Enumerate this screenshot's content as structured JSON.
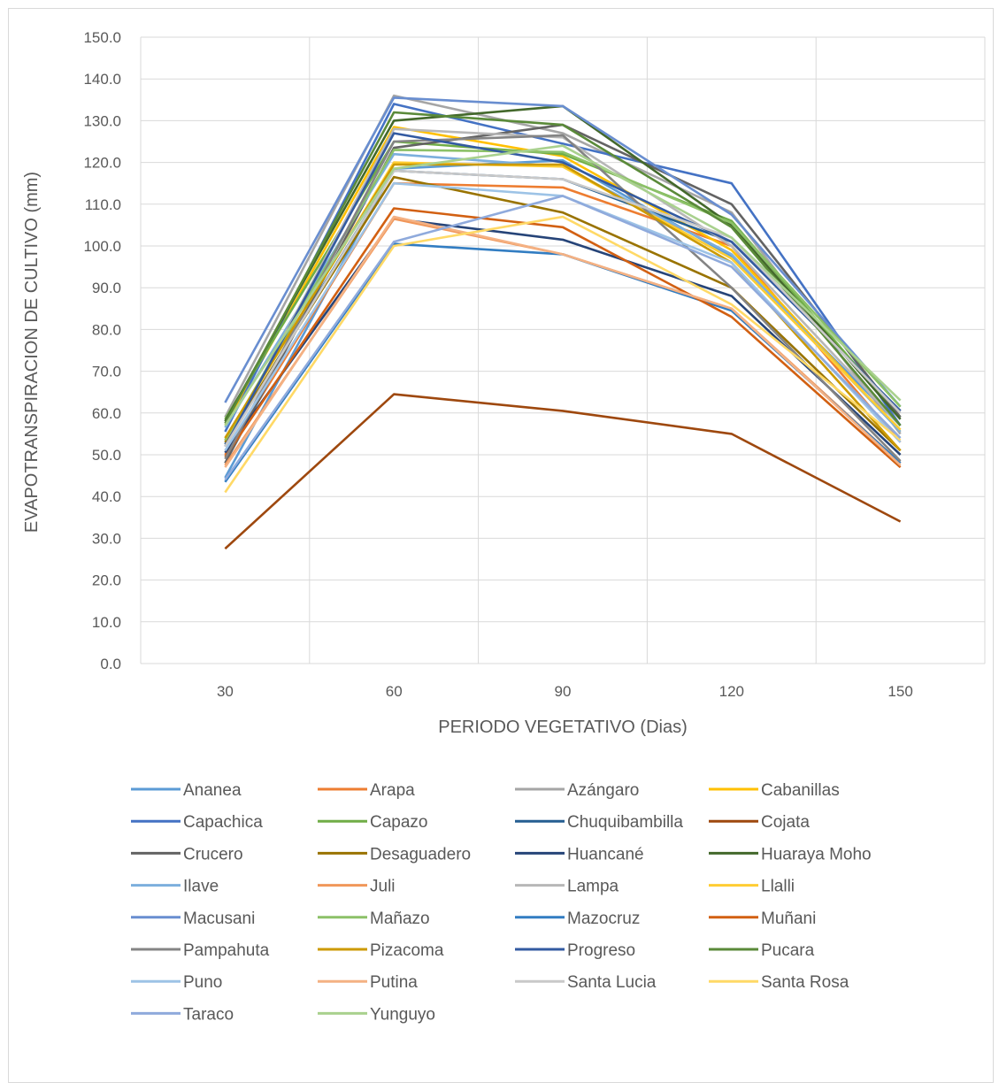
{
  "chart_data": {
    "type": "line",
    "title": "",
    "xlabel": "PERIODO VEGETATIVO (Dias)",
    "ylabel": "EVAPOTRANSPIRACION DE CULTIVO (mm)",
    "x": [
      30,
      60,
      90,
      120,
      150
    ],
    "ylim": [
      0,
      150
    ],
    "yticks": [
      "0.0",
      "10.0",
      "20.0",
      "30.0",
      "40.0",
      "50.0",
      "60.0",
      "70.0",
      "80.0",
      "90.0",
      "100.0",
      "110.0",
      "120.0",
      "130.0",
      "140.0",
      "150.0"
    ],
    "xticks": [
      "30",
      "60",
      "90",
      "120",
      "150"
    ],
    "grid": true,
    "legend_position": "bottom",
    "series": [
      {
        "name": "Ananea",
        "color": "#5B9BD5",
        "values": [
          44.5,
          118.5,
          120.5,
          97.5,
          57.0
        ]
      },
      {
        "name": "Arapa",
        "color": "#ED7D31",
        "values": [
          50.0,
          115.0,
          114.0,
          100.0,
          53.0
        ]
      },
      {
        "name": "Azángaro",
        "color": "#A5A5A5",
        "values": [
          59.0,
          136.0,
          127.0,
          108.0,
          55.0
        ]
      },
      {
        "name": "Cabanillas",
        "color": "#FFC000",
        "values": [
          57.0,
          128.5,
          121.5,
          99.0,
          55.5
        ]
      },
      {
        "name": "Capachica",
        "color": "#4472C4",
        "values": [
          55.5,
          134.0,
          124.5,
          115.0,
          57.0
        ]
      },
      {
        "name": "Capazo",
        "color": "#70AD47",
        "values": [
          58.5,
          125.0,
          122.0,
          106.0,
          59.0
        ]
      },
      {
        "name": "Chuquibambilla",
        "color": "#255E91",
        "values": [
          52.5,
          118.0,
          116.0,
          101.0,
          60.5
        ]
      },
      {
        "name": "Cojata",
        "color": "#9E480E",
        "values": [
          27.5,
          64.5,
          60.5,
          55.0,
          34.0
        ]
      },
      {
        "name": "Crucero",
        "color": "#636363",
        "values": [
          48.0,
          123.5,
          129.0,
          110.0,
          59.0
        ]
      },
      {
        "name": "Desaguadero",
        "color": "#997300",
        "values": [
          53.0,
          116.5,
          108.0,
          90.0,
          51.0
        ]
      },
      {
        "name": "Huancané",
        "color": "#264478",
        "values": [
          50.5,
          106.5,
          101.5,
          88.0,
          50.0
        ]
      },
      {
        "name": "Huaraya Moho",
        "color": "#43682B",
        "values": [
          58.0,
          130.0,
          133.5,
          105.0,
          58.5
        ]
      },
      {
        "name": "Ilave",
        "color": "#7CAFDD",
        "values": [
          56.5,
          122.0,
          119.0,
          98.0,
          55.5
        ]
      },
      {
        "name": "Juli",
        "color": "#F1975A",
        "values": [
          47.5,
          106.5,
          98.0,
          85.0,
          48.0
        ]
      },
      {
        "name": "Lampa",
        "color": "#B7B7B7",
        "values": [
          52.0,
          128.0,
          126.0,
          100.0,
          57.0
        ]
      },
      {
        "name": "Llalli",
        "color": "#FFCD33",
        "values": [
          53.5,
          120.0,
          119.0,
          97.0,
          56.0
        ]
      },
      {
        "name": "Macusani",
        "color": "#698ED0",
        "values": [
          62.5,
          135.5,
          133.5,
          107.5,
          61.5
        ]
      },
      {
        "name": "Mañazo",
        "color": "#8CC168",
        "values": [
          53.5,
          123.0,
          122.5,
          105.5,
          61.5
        ]
      },
      {
        "name": "Mazocruz",
        "color": "#327DC2",
        "values": [
          43.5,
          100.5,
          98.0,
          84.5,
          48.0
        ]
      },
      {
        "name": "Muñani",
        "color": "#D26012",
        "values": [
          49.5,
          109.0,
          104.5,
          83.0,
          47.0
        ]
      },
      {
        "name": "Pampahuta",
        "color": "#848484",
        "values": [
          49.0,
          125.0,
          126.5,
          90.0,
          48.5
        ]
      },
      {
        "name": "Pizacoma",
        "color": "#CC9A00",
        "values": [
          54.0,
          119.5,
          119.5,
          96.0,
          51.0
        ]
      },
      {
        "name": "Progreso",
        "color": "#335AA1",
        "values": [
          52.0,
          127.0,
          120.0,
          101.0,
          60.5
        ]
      },
      {
        "name": "Pucara",
        "color": "#5A8A39",
        "values": [
          57.5,
          132.0,
          129.0,
          104.5,
          57.0
        ]
      },
      {
        "name": "Puno",
        "color": "#9DC3E6",
        "values": [
          51.0,
          115.0,
          112.0,
          96.0,
          53.0
        ]
      },
      {
        "name": "Putina",
        "color": "#F4B183",
        "values": [
          47.0,
          107.0,
          98.0,
          85.0,
          47.5
        ]
      },
      {
        "name": "Santa Lucia",
        "color": "#C9C9C9",
        "values": [
          52.0,
          118.0,
          116.0,
          102.0,
          60.0
        ]
      },
      {
        "name": "Santa Rosa",
        "color": "#FFD966",
        "values": [
          41.0,
          100.0,
          107.0,
          86.0,
          53.5
        ]
      },
      {
        "name": "Taraco",
        "color": "#8FAADC",
        "values": [
          44.0,
          101.0,
          112.0,
          95.0,
          54.0
        ]
      },
      {
        "name": "Yunguyo",
        "color": "#A9D18E",
        "values": [
          57.0,
          118.5,
          124.0,
          102.0,
          63.0
        ]
      }
    ]
  }
}
